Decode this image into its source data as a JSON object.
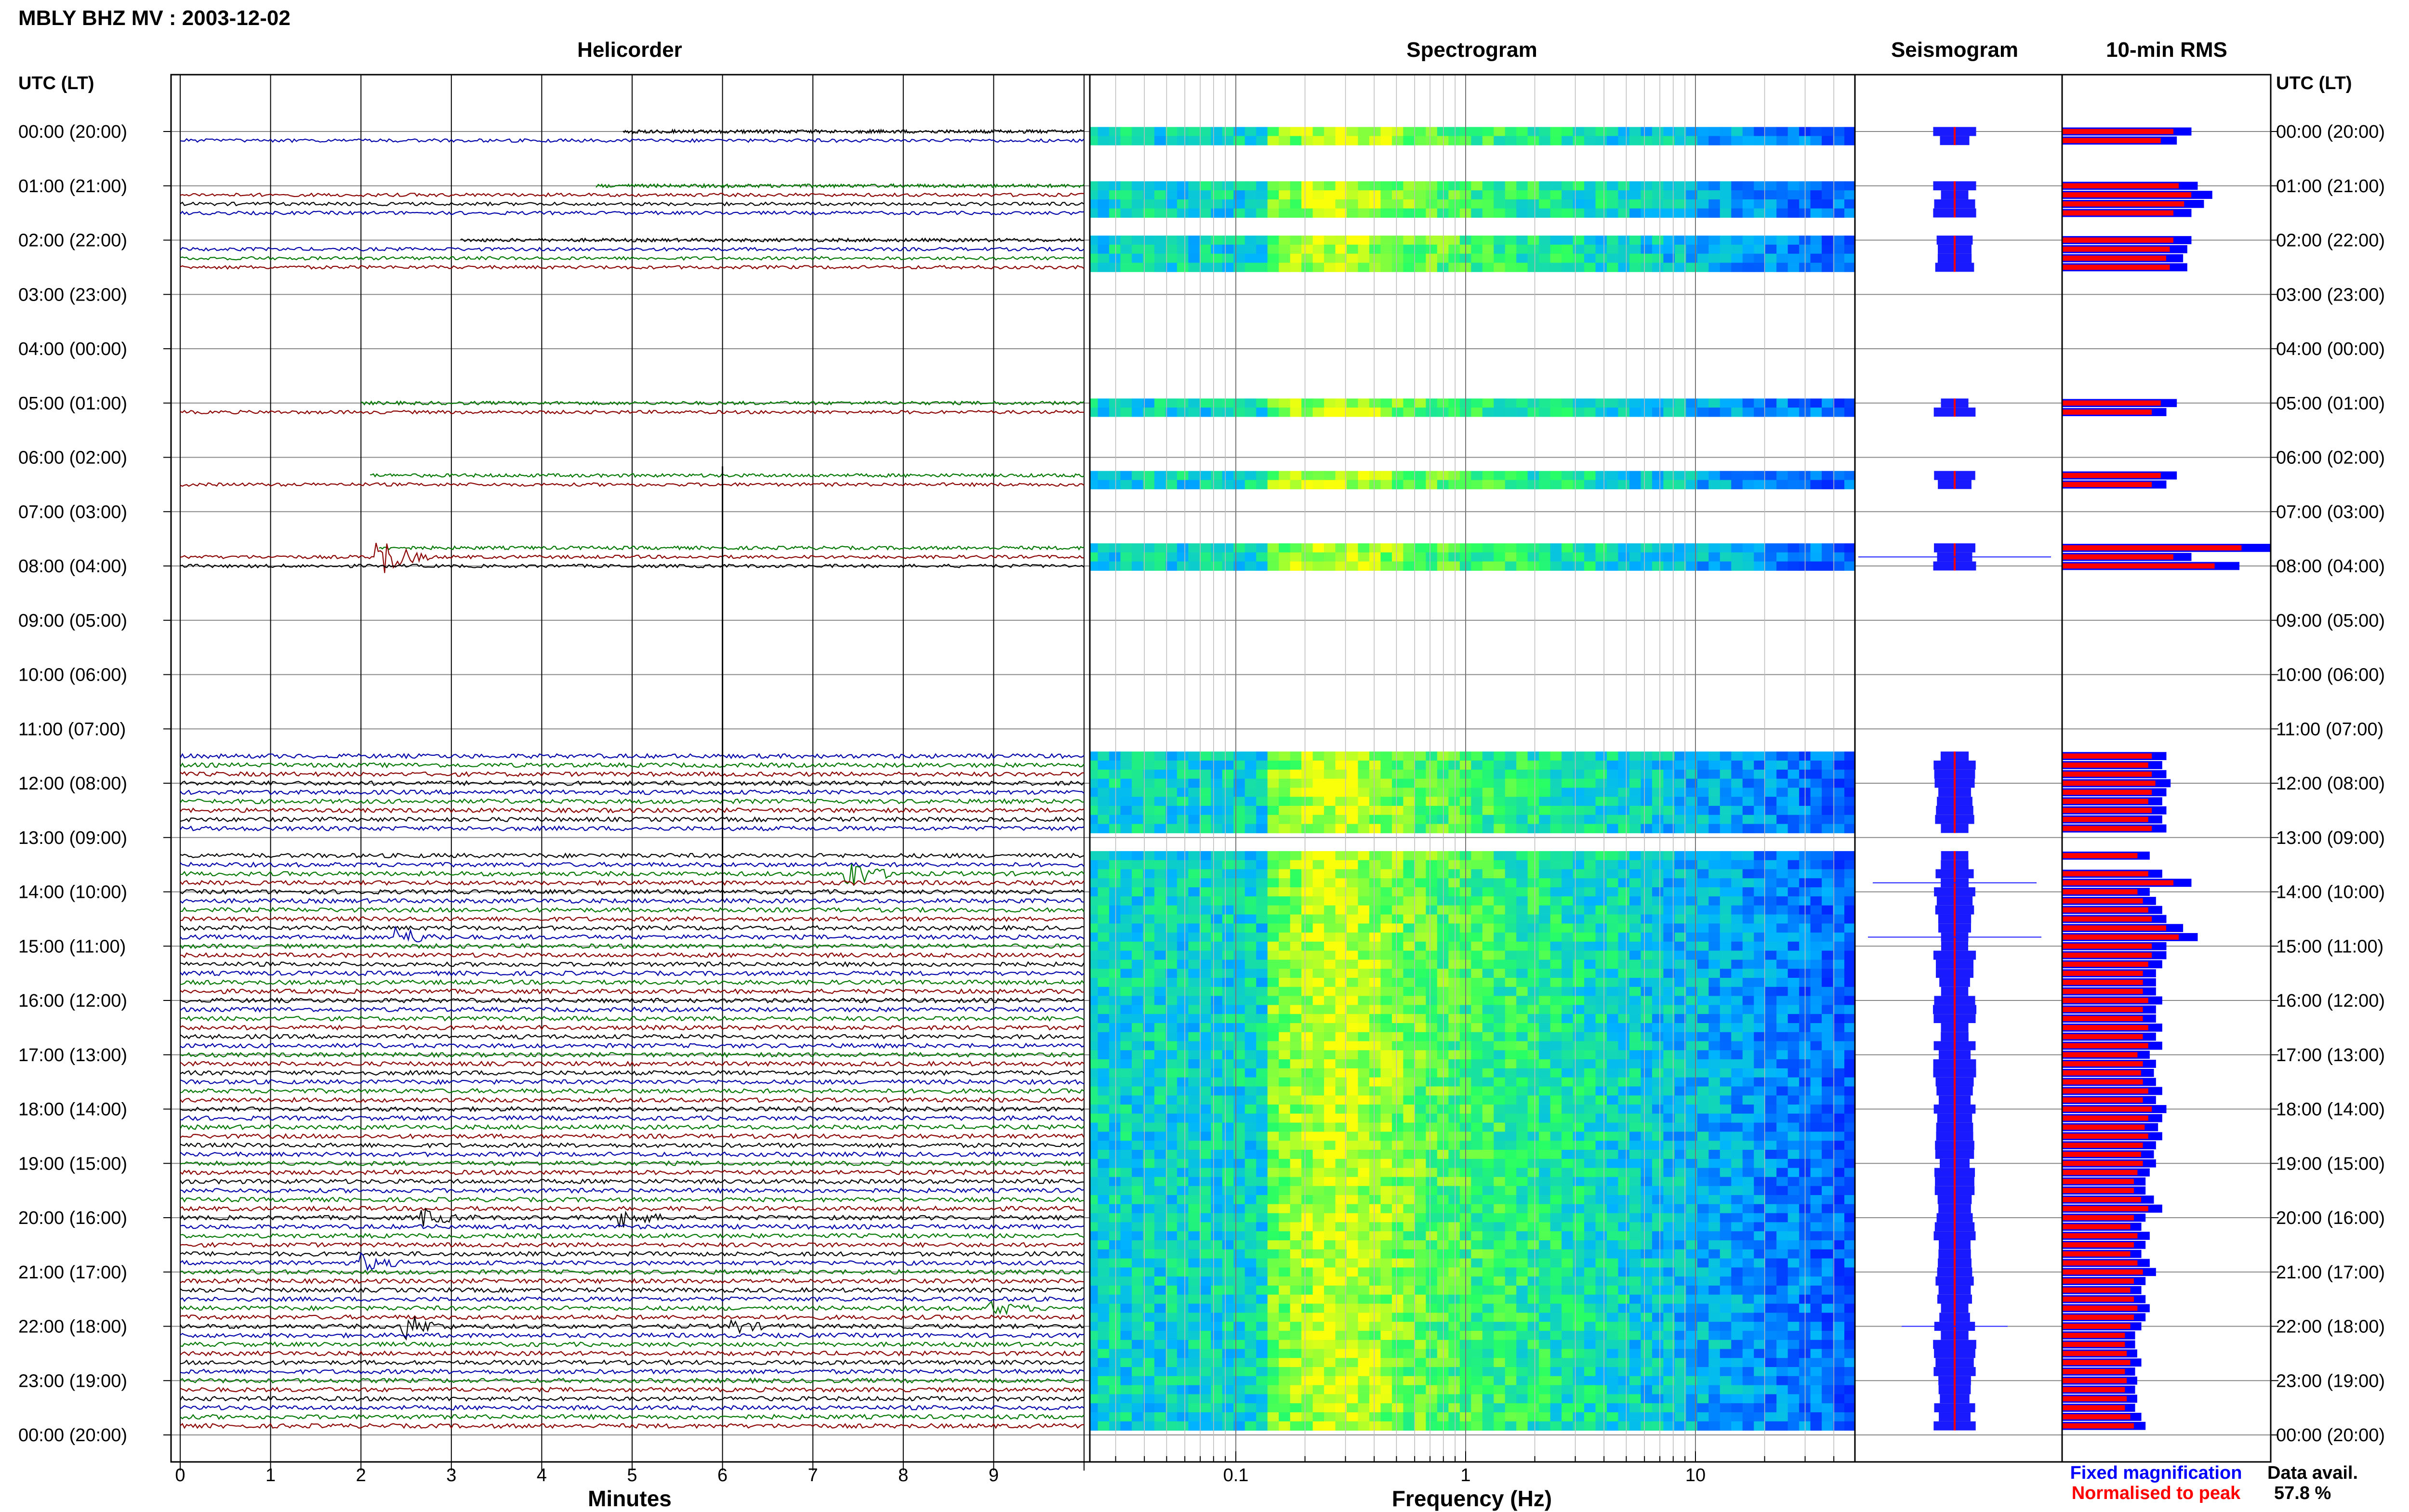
{
  "header": {
    "title": "MBLY BHZ MV : 2003-12-02"
  },
  "panels": {
    "helicorder_title": "Helicorder",
    "spectrogram_title": "Spectrogram",
    "seismogram_title": "Seismogram",
    "rms_title": "10-min RMS"
  },
  "axes": {
    "left_axis_title": "UTC (LT)",
    "right_axis_title": "UTC (LT)",
    "minutes_label": "Minutes",
    "frequency_label": "Frequency (Hz)",
    "hour_labels": [
      "00:00 (20:00)",
      "01:00 (21:00)",
      "02:00 (22:00)",
      "03:00 (23:00)",
      "04:00 (00:00)",
      "05:00 (01:00)",
      "06:00 (02:00)",
      "07:00 (03:00)",
      "08:00 (04:00)",
      "09:00 (05:00)",
      "10:00 (06:00)",
      "11:00 (07:00)",
      "12:00 (08:00)",
      "13:00 (09:00)",
      "14:00 (10:00)",
      "15:00 (11:00)",
      "16:00 (12:00)",
      "17:00 (13:00)",
      "18:00 (14:00)",
      "19:00 (15:00)",
      "20:00 (16:00)",
      "21:00 (17:00)",
      "22:00 (18:00)",
      "23:00 (19:00)",
      "00:00 (20:00)"
    ],
    "minute_ticks": [
      "0",
      "1",
      "2",
      "3",
      "4",
      "5",
      "6",
      "7",
      "8",
      "9"
    ],
    "freq_ticks": [
      "0.1",
      "1",
      "10"
    ]
  },
  "legend": {
    "fixed": "Fixed magnification",
    "normalised": "Normalised to peak",
    "fixed_color": "#0000ff",
    "normalised_color": "#ff0000"
  },
  "data_avail": {
    "label": "Data avail.",
    "value": "57.8 %"
  },
  "colors": {
    "trace_black": "#000000",
    "trace_darkred": "#8b0000",
    "trace_green": "#007700",
    "trace_blue": "#0000aa"
  },
  "chart_data": {
    "type": "heatmap",
    "station": "MBLY BHZ MV",
    "date": "2003-12-02",
    "hours_utc": 24,
    "lines_per_hour": 6,
    "minutes_per_line": 10,
    "trace_colors_cycle": [
      "black",
      "blue",
      "green",
      "darkred"
    ],
    "coverage_segments": [
      {
        "start_line": 0,
        "end_line": 1,
        "first_line_start_minute": 4.9
      },
      {
        "start_line": 6,
        "end_line": 9,
        "first_line_start_minute": 4.6
      },
      {
        "start_line": 12,
        "end_line": 15,
        "first_line_start_minute": 3.1
      },
      {
        "start_line": 30,
        "end_line": 31,
        "first_line_start_minute": 2.0
      },
      {
        "start_line": 38,
        "end_line": 39,
        "first_line_start_minute": 2.1
      },
      {
        "start_line": 46,
        "end_line": 48,
        "first_line_start_minute": 2.2
      },
      {
        "start_line": 69,
        "end_line": 77,
        "first_line_start_minute": 0
      },
      {
        "start_line": 80,
        "end_line": 81,
        "first_line_start_minute": 0
      },
      {
        "start_line": 82,
        "end_line": 113,
        "first_line_start_minute": 0
      },
      {
        "start_line": 114,
        "end_line": 143,
        "first_line_start_minute": 0
      }
    ],
    "events": [
      {
        "line": 47,
        "minute": 2.2,
        "amplitude": 1.8
      },
      {
        "line": 82,
        "minute": 7.4,
        "amplitude": 1.2
      },
      {
        "line": 89,
        "minute": 2.4,
        "amplitude": 0.8
      },
      {
        "line": 120,
        "minute": 2.7,
        "amplitude": 0.6
      },
      {
        "line": 120,
        "minute": 4.9,
        "amplitude": 0.7
      },
      {
        "line": 125,
        "minute": 2.0,
        "amplitude": 0.6
      },
      {
        "line": 130,
        "minute": 9.0,
        "amplitude": 0.5
      },
      {
        "line": 132,
        "minute": 2.5,
        "amplitude": 0.9
      },
      {
        "line": 132,
        "minute": 6.1,
        "amplitude": 0.5
      }
    ],
    "minute_axis": {
      "xlim": [
        0,
        10
      ],
      "label": "Minutes"
    },
    "frequency_axis": {
      "scale": "log",
      "xlim": [
        0.02,
        50
      ],
      "ticks": [
        0.1,
        1,
        10
      ],
      "label": "Frequency (Hz)"
    },
    "spectrogram_peak_band_hz": [
      0.15,
      0.5
    ],
    "rms_series": [
      {
        "name": "Fixed magnification",
        "color": "#0000ff"
      },
      {
        "name": "Normalised to peak",
        "color": "#ff0000"
      }
    ],
    "rms_values": {
      "0": 0.62,
      "1": 0.55,
      "6": 0.65,
      "7": 0.72,
      "8": 0.68,
      "9": 0.62,
      "12": 0.62,
      "13": 0.6,
      "14": 0.58,
      "15": 0.6,
      "30": 0.55,
      "31": 0.5,
      "38": 0.55,
      "39": 0.5,
      "46": 1.0,
      "47": 0.62,
      "48": 0.85,
      "69": 0.5,
      "70": 0.48,
      "71": 0.5,
      "72": 0.52,
      "73": 0.5,
      "74": 0.48,
      "75": 0.5,
      "76": 0.48,
      "77": 0.5,
      "80": 0.42,
      "82": 0.48,
      "83": 0.62,
      "84": 0.42,
      "85": 0.45,
      "86": 0.48,
      "87": 0.5,
      "88": 0.58,
      "89": 0.65,
      "90": 0.5,
      "91": 0.5,
      "92": 0.48,
      "93": 0.45,
      "94": 0.45,
      "95": 0.45,
      "96": 0.48,
      "97": 0.45,
      "98": 0.45,
      "99": 0.48,
      "100": 0.45,
      "101": 0.48,
      "102": 0.42,
      "103": 0.45,
      "104": 0.44,
      "105": 0.45,
      "106": 0.48,
      "107": 0.45,
      "108": 0.5,
      "109": 0.48,
      "110": 0.46,
      "111": 0.48,
      "112": 0.45,
      "113": 0.44,
      "114": 0.45,
      "115": 0.42,
      "116": 0.4,
      "117": 0.4,
      "118": 0.44,
      "119": 0.48,
      "120": 0.4,
      "121": 0.38,
      "122": 0.42,
      "123": 0.4,
      "124": 0.38,
      "125": 0.42,
      "126": 0.45,
      "127": 0.4,
      "128": 0.38,
      "129": 0.4,
      "130": 0.42,
      "131": 0.4,
      "132": 0.38,
      "133": 0.35,
      "134": 0.35,
      "135": 0.36,
      "136": 0.38,
      "137": 0.35,
      "138": 0.36,
      "139": 0.35,
      "140": 0.36,
      "141": 0.35,
      "142": 0.38,
      "143": 0.4
    }
  }
}
